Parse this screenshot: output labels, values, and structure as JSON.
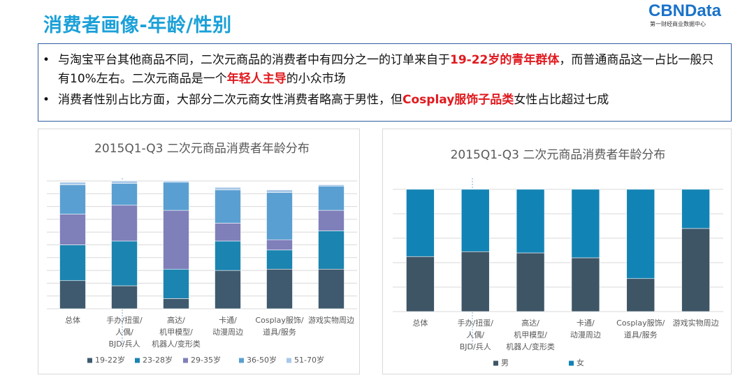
{
  "header": {
    "title": "消费者画像-年龄/性别",
    "logo": "CBNData",
    "logo_sub": "第一财经商业数据中心"
  },
  "bullets": [
    [
      "与淘宝平台其他商品不同，二次元商品的消费者中有四分之一的订单来自于",
      "19-22岁的青年群体",
      "，而普通商品这一占比一般只有10%左右。二次元商品是一个",
      "年轻人主导",
      "的小众市场"
    ],
    [
      "消费者性别占比方面，大部分二次元商女性消费者略高于男性，但",
      "Cosplay服饰子品类",
      "女性占比超过七成"
    ]
  ],
  "chart_data": [
    {
      "type": "stacked_bar",
      "title": "2015Q1-Q3 二次元商品消费者年龄分布",
      "categories": [
        [
          "总体"
        ],
        [
          "手办/扭蛋/",
          "人偶/",
          "BJD/兵人"
        ],
        [
          "高达/",
          "机甲模型/",
          "机器人/变形类"
        ],
        [
          "卡通/",
          "动漫周边"
        ],
        [
          "Cosplay服饰/",
          "道具/服务"
        ],
        [
          "游戏实物周边"
        ]
      ],
      "series": [
        {
          "name": "19-22岁",
          "color": "#3f5a6e",
          "values": [
            22,
            18,
            8,
            30,
            31,
            31
          ]
        },
        {
          "name": "23-28岁",
          "color": "#1b84b0",
          "values": [
            28,
            35,
            23,
            23,
            15,
            30
          ]
        },
        {
          "name": "29-35岁",
          "color": "#7f7fba",
          "values": [
            24,
            28,
            46,
            14,
            8,
            16
          ]
        },
        {
          "name": "36-50岁",
          "color": "#5a9fd1",
          "values": [
            23,
            17,
            22,
            26,
            37,
            19
          ]
        },
        {
          "name": "51-70岁",
          "color": "#a8c8e8",
          "values": [
            2,
            2,
            1,
            2,
            2,
            1
          ]
        }
      ],
      "ylim": [
        0,
        100
      ],
      "yticks": [
        0,
        10,
        20,
        30,
        40,
        50,
        60,
        70,
        80,
        90,
        100
      ],
      "grid": true,
      "legend": "bottom"
    },
    {
      "type": "stacked_bar",
      "title": "2015Q1-Q3 二次元商品消费者年龄分布",
      "categories": [
        [
          "总体"
        ],
        [
          "手办/扭蛋/",
          "人偶/",
          "BJD/兵人"
        ],
        [
          "高达/",
          "机甲模型/",
          "机器人/变形类"
        ],
        [
          "卡通/",
          "动漫周边"
        ],
        [
          "Cosplay服饰/",
          "道具/服务"
        ],
        [
          "游戏实物周边"
        ]
      ],
      "series": [
        {
          "name": "男",
          "color": "#3e5566",
          "values": [
            45,
            49,
            48,
            44,
            27,
            68
          ]
        },
        {
          "name": "女",
          "color": "#1283b5",
          "values": [
            55,
            51,
            52,
            56,
            73,
            32
          ]
        }
      ],
      "ylim": [
        0,
        100
      ],
      "yticks": [
        0,
        20,
        40,
        60,
        80,
        100
      ],
      "grid": true,
      "legend": "bottom"
    }
  ]
}
